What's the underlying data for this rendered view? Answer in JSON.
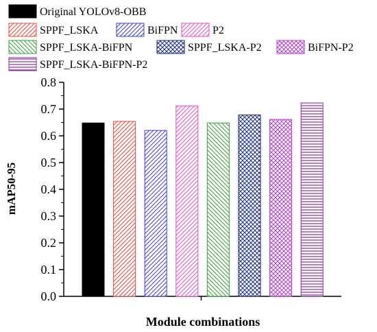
{
  "chart_data": {
    "type": "bar",
    "xlabel": "Module combinations",
    "ylabel": "mAP50-95",
    "ylim": [
      0.0,
      0.8
    ],
    "yticks": [
      "0.0",
      "0.1",
      "0.2",
      "0.3",
      "0.4",
      "0.5",
      "0.6",
      "0.7",
      "0.8"
    ],
    "grid": false,
    "legend_position": "top",
    "series": [
      {
        "name": "Original YOLOv8-OBB",
        "value": 0.648,
        "color": "#000000",
        "pattern": "solid"
      },
      {
        "name": "SPPF_LSKA",
        "value": 0.654,
        "color": "#e8473f",
        "pattern": "diagonal-right"
      },
      {
        "name": "BiFPN",
        "value": 0.62,
        "color": "#3b3bd9",
        "pattern": "diagonal-right"
      },
      {
        "name": "P2",
        "value": 0.712,
        "color": "#e24ec4",
        "pattern": "diagonal-right"
      },
      {
        "name": "SPPF_LSKA-BiFPN",
        "value": 0.648,
        "color": "#3a9e3a",
        "pattern": "diagonal-left"
      },
      {
        "name": "SPPF_LSKA-P2",
        "value": 0.678,
        "color": "#1a2a7a",
        "pattern": "crosshatch"
      },
      {
        "name": "BiFPN-P2",
        "value": 0.661,
        "color": "#b03ad0",
        "pattern": "crosshatch"
      },
      {
        "name": "SPPF_LSKA-BiFPN-P2",
        "value": 0.723,
        "color": "#8a2aa0",
        "pattern": "horizontal"
      }
    ]
  }
}
